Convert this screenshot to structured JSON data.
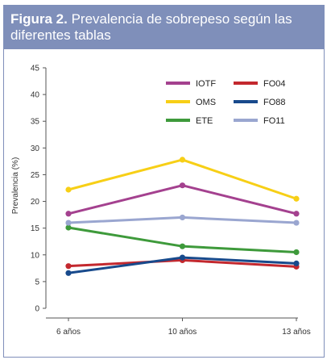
{
  "figure": {
    "label": "Figura 2.",
    "title": " Prevalencia de sobrepeso según las diferentes tablas"
  },
  "chart_data": {
    "type": "line",
    "title": "Prevalencia de sobrepeso según las diferentes tablas",
    "xlabel": "",
    "ylabel": "Prevalencia (%)",
    "categories": [
      "6 años",
      "10 años",
      "13 años"
    ],
    "ylim": [
      0,
      45
    ],
    "yticks": [
      0,
      5,
      10,
      15,
      20,
      25,
      30,
      35,
      40,
      45
    ],
    "grid": false,
    "legend_position": "top-right",
    "series": [
      {
        "name": "IOTF",
        "color": "#a4418f",
        "values": [
          17.7,
          23.0,
          17.7
        ]
      },
      {
        "name": "OMS",
        "color": "#f7cf16",
        "values": [
          22.2,
          27.8,
          20.5
        ]
      },
      {
        "name": "ETE",
        "color": "#3e9a3b",
        "values": [
          15.1,
          11.6,
          10.5
        ]
      },
      {
        "name": "FO04",
        "color": "#c3282e",
        "values": [
          7.9,
          9.0,
          7.8
        ]
      },
      {
        "name": "FO88",
        "color": "#184a8c",
        "values": [
          6.6,
          9.5,
          8.4
        ]
      },
      {
        "name": "FO11",
        "color": "#9aa6d0",
        "values": [
          16.0,
          17.0,
          16.0
        ]
      }
    ]
  }
}
